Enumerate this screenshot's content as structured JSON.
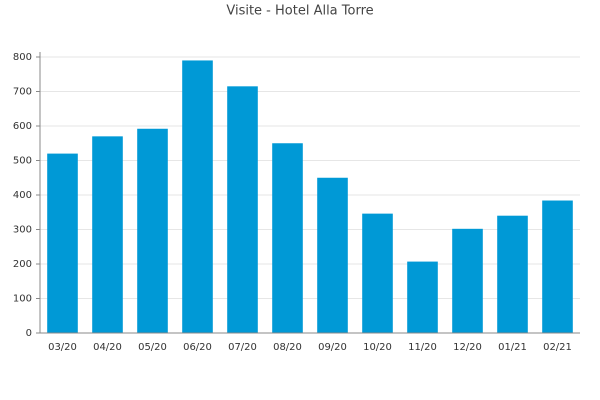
{
  "chart_data": {
    "type": "bar",
    "title": "Visite - Hotel Alla Torre",
    "categories": [
      "03/20",
      "04/20",
      "05/20",
      "06/20",
      "07/20",
      "08/20",
      "09/20",
      "10/20",
      "11/20",
      "12/20",
      "01/21",
      "02/21"
    ],
    "values": [
      520,
      570,
      592,
      790,
      715,
      550,
      450,
      346,
      207,
      302,
      340,
      384
    ],
    "color": "#0099d6",
    "ylim": [
      0,
      800
    ],
    "yticks": [
      0,
      100,
      200,
      300,
      400,
      500,
      600,
      700,
      800
    ],
    "grid": true
  }
}
